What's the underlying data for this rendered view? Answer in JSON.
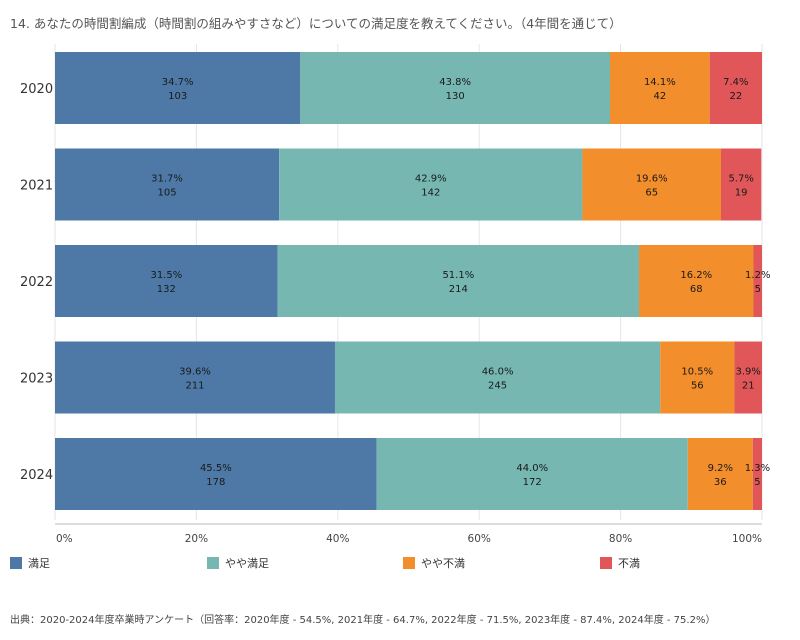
{
  "title": "14. あなたの時間割編成（時間割の組みやすさなど）についての満足度を教えてください。（4年間を通じて）",
  "source": "出典：2020-2024年度卒業時アンケート（回答率：2020年度 - 54.5%, 2021年度 - 64.7%, 2022年度 - 71.5%, 2023年度 - 87.4%, 2024年度 - 75.2%）",
  "colors": {
    "satisfied": "#4e79a7",
    "somewhat_satisfied": "#76b7b2",
    "somewhat_dissatisfied": "#f28e2b",
    "dissatisfied": "#e15759"
  },
  "chart_data": {
    "type": "bar",
    "orientation": "horizontal",
    "stacked": true,
    "normalized": true,
    "categories": [
      "2020",
      "2021",
      "2022",
      "2023",
      "2024"
    ],
    "xlim": [
      0,
      100
    ],
    "x_ticks": [
      "0%",
      "20%",
      "40%",
      "60%",
      "80%",
      "100%"
    ],
    "legend_position": "bottom",
    "series": [
      {
        "name": "満足",
        "color": "#4e79a7",
        "percent_labels": [
          "34.7%",
          "31.7%",
          "31.5%",
          "39.6%",
          "45.5%"
        ],
        "values": [
          34.7,
          31.7,
          31.5,
          39.6,
          45.5
        ],
        "counts": [
          103,
          105,
          132,
          211,
          178
        ]
      },
      {
        "name": "やや満足",
        "color": "#76b7b2",
        "percent_labels": [
          "43.8%",
          "42.9%",
          "51.1%",
          "46.0%",
          "44.0%"
        ],
        "values": [
          43.8,
          42.9,
          51.1,
          46.0,
          44.0
        ],
        "counts": [
          130,
          142,
          214,
          245,
          172
        ]
      },
      {
        "name": "やや不満",
        "color": "#f28e2b",
        "percent_labels": [
          "14.1%",
          "19.6%",
          "16.2%",
          "10.5%",
          "9.2%"
        ],
        "values": [
          14.1,
          19.6,
          16.2,
          10.5,
          9.2
        ],
        "counts": [
          42,
          65,
          68,
          56,
          36
        ]
      },
      {
        "name": "不満",
        "color": "#e15759",
        "percent_labels": [
          "7.4%",
          "5.7%",
          "1.2%",
          "3.9%",
          "1.3%"
        ],
        "values": [
          7.4,
          5.7,
          1.2,
          3.9,
          1.3
        ],
        "counts": [
          22,
          19,
          5,
          21,
          5
        ]
      }
    ]
  }
}
